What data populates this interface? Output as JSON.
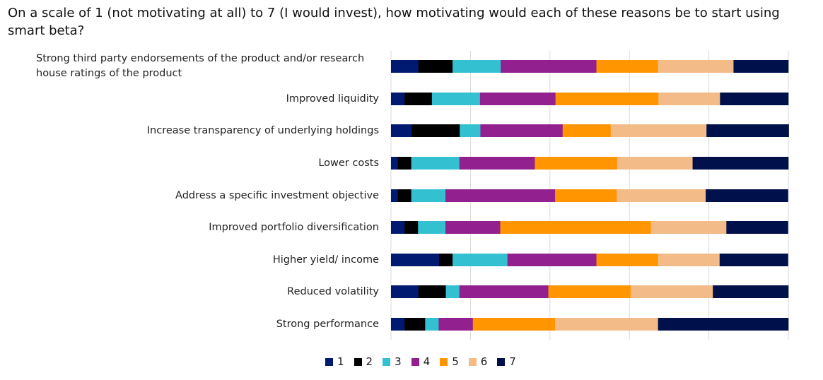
{
  "chart_data": {
    "type": "bar",
    "orientation": "horizontal",
    "stacked": "100%",
    "title": "On a scale of 1 (not motivating at all) to 7 (I would invest), how motivating would each of these reasons be to start using smart beta?",
    "categories": [
      "Strong third party endorsements of the product and/or research house ratings of the product",
      "Improved liquidity",
      "Increase transparency of underlying holdings",
      "Lower costs",
      "Address a specific investment objective",
      "Improved portfolio diversification",
      "Higher yield/ income",
      "Reduced volatility",
      "Strong performance"
    ],
    "series": [
      {
        "name": "1",
        "color": "#001a72",
        "values": [
          6.9,
          3.4,
          5.2,
          1.7,
          1.7,
          3.4,
          12.1,
          6.9,
          3.4
        ]
      },
      {
        "name": "2",
        "color": "#000000",
        "values": [
          8.6,
          6.9,
          12.1,
          3.4,
          3.4,
          3.4,
          3.4,
          6.9,
          5.2
        ]
      },
      {
        "name": "3",
        "color": "#33c1d1",
        "values": [
          12.1,
          12.1,
          5.2,
          12.1,
          8.6,
          6.9,
          13.8,
          3.4,
          3.4
        ]
      },
      {
        "name": "4",
        "color": "#93208f",
        "values": [
          24.1,
          19.0,
          20.7,
          19.0,
          27.6,
          13.8,
          22.4,
          22.4,
          8.6
        ]
      },
      {
        "name": "5",
        "color": "#ff9500",
        "values": [
          15.5,
          25.9,
          12.1,
          20.7,
          15.5,
          37.9,
          15.5,
          20.7,
          20.7
        ]
      },
      {
        "name": "6",
        "color": "#f2bb87",
        "values": [
          19.0,
          15.5,
          24.1,
          19.0,
          22.4,
          19.0,
          15.5,
          20.7,
          25.9
        ]
      },
      {
        "name": "7",
        "color": "#00104a",
        "values": [
          13.8,
          17.2,
          20.7,
          24.1,
          20.7,
          15.5,
          17.2,
          19.0,
          32.8
        ]
      }
    ],
    "xlim": [
      0,
      100
    ],
    "grid": true,
    "legend": "bottom"
  }
}
